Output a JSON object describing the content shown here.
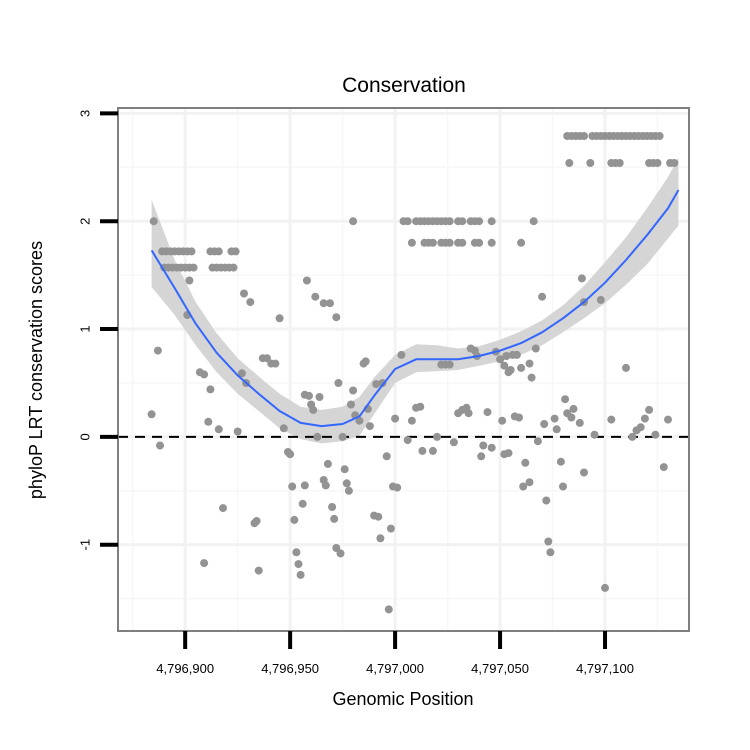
{
  "chart_data": {
    "type": "scatter",
    "title": "Conservation",
    "xlabel": "Genomic Position",
    "ylabel": "phyloP LRT conservation scores",
    "xlim": [
      4796868,
      4797140
    ],
    "ylim": [
      -1.8,
      3.05
    ],
    "x_ticks": [
      4796900,
      4796950,
      4797000,
      4797050,
      4797100
    ],
    "x_tick_labels": [
      "4,796,900",
      "4,796,950",
      "4,797,000",
      "4,797,050",
      "4,797,100"
    ],
    "y_ticks": [
      -1,
      0,
      1,
      2,
      3
    ],
    "y_tick_labels": [
      "-1",
      "0",
      "1",
      "2",
      "3"
    ],
    "grid": true,
    "reference_line": {
      "y": 0,
      "style": "dashed"
    },
    "colors": {
      "points": "#939393",
      "smooth_line": "#3366ff",
      "ribbon": "#d3d3d3",
      "panel_border": "#7f7f7f",
      "grid": "#f2f2f2"
    },
    "series": [
      {
        "type": "scatter",
        "points": [
          [
            4796885,
            2.0
          ],
          [
            4796887,
            0.8
          ],
          [
            4796888,
            -0.08
          ],
          [
            4796884,
            0.21
          ],
          [
            4796889,
            1.72
          ],
          [
            4796891,
            1.72
          ],
          [
            4796893,
            1.72
          ],
          [
            4796895,
            1.72
          ],
          [
            4796897,
            1.72
          ],
          [
            4796899,
            1.72
          ],
          [
            4796901,
            1.72
          ],
          [
            4796903,
            1.72
          ],
          [
            4796890,
            1.57
          ],
          [
            4796892,
            1.57
          ],
          [
            4796894,
            1.57
          ],
          [
            4796896,
            1.57
          ],
          [
            4796898,
            1.57
          ],
          [
            4796900,
            1.57
          ],
          [
            4796902,
            1.57
          ],
          [
            4796904,
            1.57
          ],
          [
            4796912,
            1.72
          ],
          [
            4796914,
            1.72
          ],
          [
            4796916,
            1.72
          ],
          [
            4796922,
            1.72
          ],
          [
            4796924,
            1.72
          ],
          [
            4796913,
            1.57
          ],
          [
            4796915,
            1.57
          ],
          [
            4796917,
            1.57
          ],
          [
            4796919,
            1.57
          ],
          [
            4796921,
            1.57
          ],
          [
            4796923,
            1.57
          ],
          [
            4796902,
            1.45
          ],
          [
            4796901,
            1.13
          ],
          [
            4796907,
            0.6
          ],
          [
            4796909,
            0.58
          ],
          [
            4796912,
            0.44
          ],
          [
            4796911,
            0.14
          ],
          [
            4796916,
            0.07
          ],
          [
            4796918,
            -0.66
          ],
          [
            4796909,
            -1.17
          ],
          [
            4796925,
            0.05
          ],
          [
            4796927,
            0.59
          ],
          [
            4796929,
            0.5
          ],
          [
            4796928,
            1.33
          ],
          [
            4796931,
            1.25
          ],
          [
            4796933,
            -0.8
          ],
          [
            4796934,
            -0.78
          ],
          [
            4796935,
            -1.24
          ],
          [
            4796937,
            0.73
          ],
          [
            4796939,
            0.73
          ],
          [
            4796941,
            0.68
          ],
          [
            4796943,
            0.68
          ],
          [
            4796945,
            1.1
          ],
          [
            4796947,
            0.08
          ],
          [
            4796949,
            -0.14
          ],
          [
            4796950,
            -0.16
          ],
          [
            4796951,
            -0.46
          ],
          [
            4796952,
            -0.77
          ],
          [
            4796953,
            -1.07
          ],
          [
            4796954,
            -1.18
          ],
          [
            4796955,
            -1.28
          ],
          [
            4796956,
            -0.62
          ],
          [
            4796957,
            -0.45
          ],
          [
            4796957,
            0.39
          ],
          [
            4796959,
            0.38
          ],
          [
            4796960,
            0.3
          ],
          [
            4796961,
            0.25
          ],
          [
            4796963,
            0.0
          ],
          [
            4796964,
            0.37
          ],
          [
            4796966,
            -0.4
          ],
          [
            4796967,
            -0.45
          ],
          [
            4796968,
            -0.25
          ],
          [
            4796958,
            1.45
          ],
          [
            4796962,
            1.3
          ],
          [
            4796966,
            1.24
          ],
          [
            4796969,
            1.24
          ],
          [
            4796972,
            1.11
          ],
          [
            4796970,
            -0.65
          ],
          [
            4796971,
            -0.76
          ],
          [
            4796972,
            -1.03
          ],
          [
            4796974,
            -1.08
          ],
          [
            4796973,
            0.5
          ],
          [
            4796975,
            0.0
          ],
          [
            4796976,
            -0.3
          ],
          [
            4796977,
            -0.43
          ],
          [
            4796978,
            -0.5
          ],
          [
            4796979,
            0.3
          ],
          [
            4796980,
            0.43
          ],
          [
            4796981,
            0.2
          ],
          [
            4796983,
            0.15
          ],
          [
            4796980,
            2.0
          ],
          [
            4796985,
            0.68
          ],
          [
            4796986,
            0.7
          ],
          [
            4796987,
            0.26
          ],
          [
            4796988,
            0.1
          ],
          [
            4796990,
            -0.73
          ],
          [
            4796992,
            -0.74
          ],
          [
            4796993,
            -0.94
          ],
          [
            4796991,
            0.49
          ],
          [
            4796994,
            0.5
          ],
          [
            4796996,
            -0.18
          ],
          [
            4796997,
            -1.6
          ],
          [
            4796998,
            -0.85
          ],
          [
            4796999,
            -0.46
          ],
          [
            4797001,
            -0.47
          ],
          [
            4797000,
            0.17
          ],
          [
            4797003,
            0.76
          ],
          [
            4797004,
            2.0
          ],
          [
            4797006,
            2.0
          ],
          [
            4797010,
            2.0
          ],
          [
            4797012,
            2.0
          ],
          [
            4797014,
            2.0
          ],
          [
            4797016,
            2.0
          ],
          [
            4797018,
            2.0
          ],
          [
            4797020,
            2.0
          ],
          [
            4797022,
            2.0
          ],
          [
            4797024,
            2.0
          ],
          [
            4797026,
            2.0
          ],
          [
            4797030,
            2.0
          ],
          [
            4797032,
            2.0
          ],
          [
            4797036,
            2.0
          ],
          [
            4797038,
            2.0
          ],
          [
            4797040,
            2.0
          ],
          [
            4797046,
            2.0
          ],
          [
            4797008,
            1.8
          ],
          [
            4797014,
            1.8
          ],
          [
            4797016,
            1.8
          ],
          [
            4797018,
            1.8
          ],
          [
            4797022,
            1.8
          ],
          [
            4797024,
            1.8
          ],
          [
            4797026,
            1.8
          ],
          [
            4797030,
            1.8
          ],
          [
            4797032,
            1.8
          ],
          [
            4797038,
            1.8
          ],
          [
            4797040,
            1.8
          ],
          [
            4797046,
            1.8
          ],
          [
            4797006,
            -0.03
          ],
          [
            4797008,
            0.15
          ],
          [
            4797010,
            0.27
          ],
          [
            4797012,
            0.28
          ],
          [
            4797013,
            -0.13
          ],
          [
            4797018,
            -0.13
          ],
          [
            4797020,
            0.0
          ],
          [
            4797022,
            0.67
          ],
          [
            4797024,
            0.67
          ],
          [
            4797026,
            0.67
          ],
          [
            4797028,
            -0.05
          ],
          [
            4797030,
            0.22
          ],
          [
            4797032,
            0.25
          ],
          [
            4797034,
            0.27
          ],
          [
            4797035,
            0.22
          ],
          [
            4797036,
            0.82
          ],
          [
            4797038,
            0.8
          ],
          [
            4797039,
            0.75
          ],
          [
            4797041,
            -0.18
          ],
          [
            4797042,
            -0.08
          ],
          [
            4797044,
            0.23
          ],
          [
            4797046,
            -0.1
          ],
          [
            4797048,
            0.79
          ],
          [
            4797050,
            0.72
          ],
          [
            4797052,
            0.66
          ],
          [
            4797053,
            0.75
          ],
          [
            4797054,
            0.6
          ],
          [
            4797055,
            0.62
          ],
          [
            4797056,
            0.76
          ],
          [
            4797058,
            0.76
          ],
          [
            4797060,
            0.64
          ],
          [
            4797051,
            0.15
          ],
          [
            4797052,
            -0.16
          ],
          [
            4797054,
            -0.15
          ],
          [
            4797057,
            0.19
          ],
          [
            4797059,
            0.18
          ],
          [
            4797061,
            -0.46
          ],
          [
            4797062,
            -0.24
          ],
          [
            4797064,
            -0.42
          ],
          [
            4797060,
            1.8
          ],
          [
            4797066,
            2.0
          ],
          [
            4797064,
            0.68
          ],
          [
            4797065,
            0.55
          ],
          [
            4797067,
            0.82
          ],
          [
            4797068,
            -0.04
          ],
          [
            4797070,
            1.3
          ],
          [
            4797071,
            0.12
          ],
          [
            4797072,
            -0.59
          ],
          [
            4797073,
            -0.97
          ],
          [
            4797074,
            -1.07
          ],
          [
            4797076,
            0.17
          ],
          [
            4797077,
            0.07
          ],
          [
            4797079,
            -0.23
          ],
          [
            4797080,
            -0.46
          ],
          [
            4797081,
            0.35
          ],
          [
            4797082,
            0.22
          ],
          [
            4797084,
            0.18
          ],
          [
            4797085,
            0.26
          ],
          [
            4797082,
            2.79
          ],
          [
            4797084,
            2.79
          ],
          [
            4797086,
            2.79
          ],
          [
            4797088,
            2.79
          ],
          [
            4797090,
            2.79
          ],
          [
            4797094,
            2.79
          ],
          [
            4797096,
            2.79
          ],
          [
            4797098,
            2.79
          ],
          [
            4797100,
            2.79
          ],
          [
            4797102,
            2.79
          ],
          [
            4797104,
            2.79
          ],
          [
            4797106,
            2.79
          ],
          [
            4797108,
            2.79
          ],
          [
            4797110,
            2.79
          ],
          [
            4797112,
            2.79
          ],
          [
            4797114,
            2.79
          ],
          [
            4797116,
            2.79
          ],
          [
            4797118,
            2.79
          ],
          [
            4797120,
            2.79
          ],
          [
            4797122,
            2.79
          ],
          [
            4797124,
            2.79
          ],
          [
            4797126,
            2.79
          ],
          [
            4797083,
            2.54
          ],
          [
            4797093,
            2.54
          ],
          [
            4797103,
            2.54
          ],
          [
            4797105,
            2.54
          ],
          [
            4797107,
            2.54
          ],
          [
            4797121,
            2.54
          ],
          [
            4797123,
            2.54
          ],
          [
            4797125,
            2.54
          ],
          [
            4797131,
            2.54
          ],
          [
            4797133,
            2.54
          ],
          [
            4797089,
            1.47
          ],
          [
            4797090,
            1.25
          ],
          [
            4797098,
            1.27
          ],
          [
            4797090,
            -0.33
          ],
          [
            4797088,
            0.13
          ],
          [
            4797095,
            0.02
          ],
          [
            4797100,
            -1.4
          ],
          [
            4797103,
            0.16
          ],
          [
            4797110,
            0.64
          ],
          [
            4797113,
            0.0
          ],
          [
            4797115,
            0.06
          ],
          [
            4797117,
            0.09
          ],
          [
            4797119,
            0.17
          ],
          [
            4797121,
            0.25
          ],
          [
            4797124,
            0.02
          ],
          [
            4797128,
            -0.28
          ],
          [
            4797130,
            0.16
          ]
        ]
      },
      {
        "type": "smooth",
        "x": [
          4796884,
          4796895,
          4796905,
          4796915,
          4796925,
          4796935,
          4796945,
          4796955,
          4796965,
          4796975,
          4796983,
          4796990,
          4797000,
          4797010,
          4797020,
          4797030,
          4797040,
          4797050,
          4797060,
          4797070,
          4797080,
          4797090,
          4797100,
          4797110,
          4797120,
          4797130,
          4797135
        ],
        "y": [
          1.73,
          1.38,
          1.05,
          0.78,
          0.57,
          0.4,
          0.24,
          0.13,
          0.1,
          0.12,
          0.19,
          0.38,
          0.63,
          0.72,
          0.72,
          0.72,
          0.75,
          0.8,
          0.87,
          0.97,
          1.1,
          1.25,
          1.43,
          1.64,
          1.87,
          2.12,
          2.29
        ],
        "lower": [
          1.39,
          1.13,
          0.85,
          0.6,
          0.4,
          0.24,
          0.08,
          -0.02,
          -0.06,
          -0.04,
          0.01,
          0.21,
          0.5,
          0.6,
          0.61,
          0.62,
          0.66,
          0.7,
          0.76,
          0.85,
          0.97,
          1.1,
          1.24,
          1.41,
          1.6,
          1.84,
          1.96
        ],
        "upper": [
          2.2,
          1.64,
          1.25,
          0.96,
          0.73,
          0.56,
          0.4,
          0.28,
          0.25,
          0.28,
          0.37,
          0.55,
          0.76,
          0.86,
          0.85,
          0.82,
          0.84,
          0.9,
          0.98,
          1.08,
          1.22,
          1.4,
          1.62,
          1.85,
          2.12,
          2.41,
          2.59
        ]
      }
    ]
  }
}
